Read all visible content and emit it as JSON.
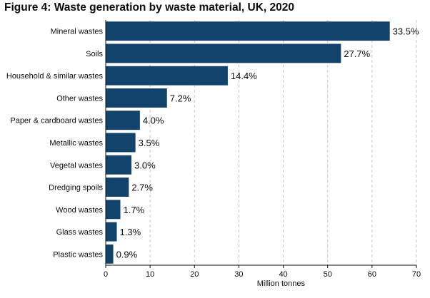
{
  "chart_data": {
    "type": "bar",
    "orientation": "horizontal",
    "title": "Figure 4: Waste generation by waste material, UK, 2020",
    "xlabel": "Million tonnes",
    "ylabel": "",
    "categories": [
      "Mineral wastes",
      "Soils",
      "Household & similar wastes",
      "Other wastes",
      "Paper & cardboard wastes",
      "Metallic wastes",
      "Vegetal wastes",
      "Dredging spoils",
      "Wood wastes",
      "Glass wastes",
      "Plastic wastes"
    ],
    "values": [
      64.0,
      53.0,
      27.5,
      13.8,
      7.7,
      6.7,
      5.8,
      5.2,
      3.3,
      2.5,
      1.7
    ],
    "data_labels": [
      "33.5%",
      "27.7%",
      "14.4%",
      "7.2%",
      "4.0%",
      "3.5%",
      "3.0%",
      "2.7%",
      "1.7%",
      "1.3%",
      "0.9%"
    ],
    "xlim": [
      0,
      70
    ],
    "xticks": [
      0,
      10,
      20,
      30,
      40,
      50,
      60,
      70
    ],
    "grid": true,
    "legend": "none",
    "bar_color": "#12436d"
  }
}
